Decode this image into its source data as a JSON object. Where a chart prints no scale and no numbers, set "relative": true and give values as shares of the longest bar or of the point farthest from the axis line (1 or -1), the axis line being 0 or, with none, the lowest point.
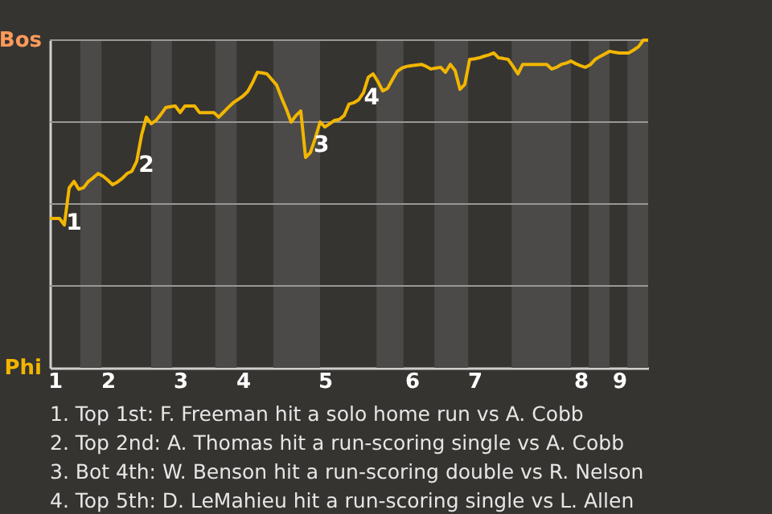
{
  "chart_data": {
    "type": "line",
    "relative": true,
    "categories": [
      null,
      "1",
      null,
      null,
      null,
      null,
      null,
      null,
      null,
      null,
      null,
      null,
      "2",
      null,
      null,
      null,
      null,
      null,
      null,
      null,
      null,
      null,
      null,
      null,
      null,
      null,
      null,
      "3",
      null,
      null,
      null,
      null,
      null,
      null,
      null,
      null,
      null,
      null,
      null,
      null,
      "4",
      null,
      null,
      null,
      null,
      null,
      null,
      null,
      null,
      null,
      null,
      null,
      null,
      null,
      null,
      null,
      null,
      "5",
      null,
      null,
      null,
      null,
      null,
      null,
      null,
      null,
      null,
      null,
      null,
      null,
      null,
      null,
      null,
      null,
      null,
      "6",
      null,
      null,
      null,
      null,
      null,
      null,
      null,
      null,
      null,
      null,
      null,
      null,
      "7",
      null,
      null,
      null,
      null,
      null,
      null,
      null,
      null,
      null,
      null,
      null,
      null,
      null,
      null,
      null,
      null,
      null,
      null,
      null,
      null,
      null,
      "8",
      null,
      null,
      null,
      null,
      null,
      null,
      null,
      "9",
      null,
      null,
      null,
      null,
      null,
      null
    ],
    "series": [
      {
        "color": "#f2b600",
        "values": [
          0.456,
          0.456,
          0.456,
          0.436,
          0.549,
          0.569,
          0.545,
          0.55,
          0.569,
          0.58,
          0.593,
          0.585,
          0.573,
          0.559,
          0.567,
          0.578,
          0.593,
          0.6,
          0.63,
          0.71,
          0.765,
          0.745,
          0.755,
          0.773,
          0.794,
          0.797,
          0.799,
          0.779,
          0.799,
          0.799,
          0.799,
          0.779,
          0.779,
          0.779,
          0.779,
          0.765,
          0.78,
          0.795,
          0.809,
          0.819,
          0.829,
          0.843,
          0.87,
          0.902,
          0.9,
          0.897,
          0.88,
          0.863,
          0.825,
          0.79,
          0.75,
          0.77,
          0.784,
          0.642,
          0.657,
          0.7,
          0.75,
          0.735,
          0.745,
          0.755,
          0.758,
          0.77,
          0.805,
          0.809,
          0.818,
          0.84,
          0.887,
          0.897,
          0.873,
          0.845,
          0.853,
          0.88,
          0.905,
          0.915,
          0.92,
          0.922,
          0.924,
          0.926,
          0.92,
          0.912,
          0.915,
          0.917,
          0.902,
          0.926,
          0.907,
          0.85,
          0.865,
          0.941,
          0.943,
          0.946,
          0.951,
          0.955,
          0.961,
          0.946,
          0.944,
          0.941,
          0.92,
          0.897,
          0.926,
          0.926,
          0.926,
          0.926,
          0.926,
          0.926,
          0.912,
          0.917,
          0.926,
          0.93,
          0.936,
          0.928,
          0.922,
          0.917,
          0.925,
          0.941,
          0.95,
          0.958,
          0.966,
          0.963,
          0.961,
          0.961,
          0.961,
          0.97,
          0.98,
          1,
          1
        ]
      }
    ],
    "grid": "y",
    "line_style": "solid",
    "annotations": [
      "Bos",
      "Phi",
      "1",
      "2",
      "3",
      "4",
      "1. Top 1st: F. Freeman hit a solo home run vs A. Cobb",
      "2. Top 2nd: A. Thomas hit a run-scoring single vs A. Cobb",
      "3. Bot 4th: W. Benson hit a run-scoring double vs R. Nelson",
      "4. Top 5th: D. LeMahieu hit a run-scoring single vs L. Allen"
    ]
  }
}
